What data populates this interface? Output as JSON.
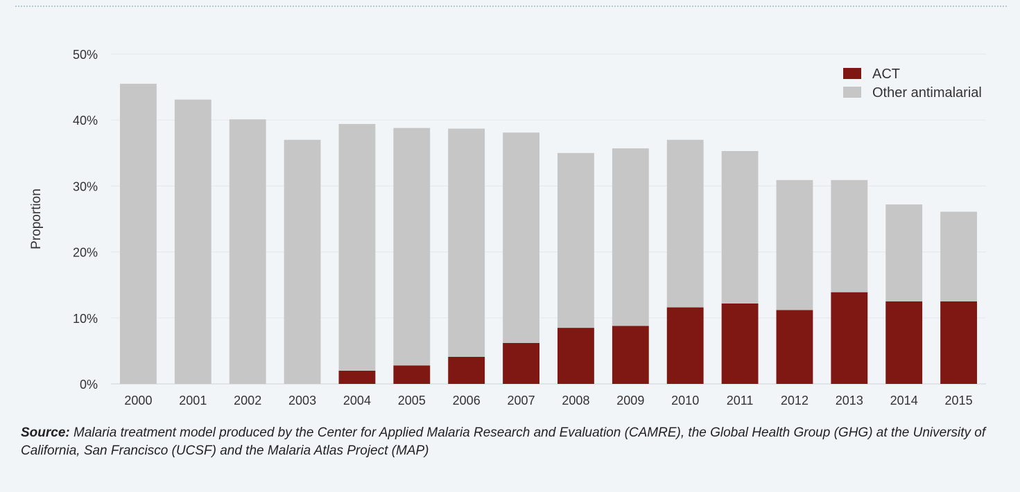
{
  "chart_data": {
    "type": "bar",
    "stacked": true,
    "title": "",
    "ylabel": "Proportion",
    "xlabel": "",
    "ylim": [
      0,
      50
    ],
    "y_ticks": [
      "0%",
      "10%",
      "20%",
      "30%",
      "40%",
      "50%"
    ],
    "categories": [
      "2000",
      "2001",
      "2002",
      "2003",
      "2004",
      "2005",
      "2006",
      "2007",
      "2008",
      "2009",
      "2010",
      "2011",
      "2012",
      "2013",
      "2014",
      "2015"
    ],
    "series": [
      {
        "name": "ACT",
        "color": "#7f1713",
        "values": [
          0,
          0,
          0,
          0,
          2.0,
          2.8,
          4.1,
          6.2,
          8.5,
          8.8,
          11.6,
          12.2,
          11.2,
          13.9,
          12.5,
          12.5
        ]
      },
      {
        "name": "Other antimalarial",
        "color": "#c6c6c6",
        "values": [
          45.5,
          43.1,
          40.1,
          37.0,
          37.4,
          36.0,
          34.6,
          31.9,
          26.5,
          26.9,
          25.4,
          23.1,
          19.7,
          17.0,
          14.7,
          13.6
        ]
      }
    ],
    "grid": true,
    "legend_position": "top-right"
  },
  "source": {
    "label": "Source:",
    "text": "Malaria treatment model produced by the Center for Applied Malaria Research and Evaluation (CAMRE), the Global Health Group (GHG) at the University of California, San Francisco (UCSF) and the Malaria Atlas Project (MAP)"
  }
}
